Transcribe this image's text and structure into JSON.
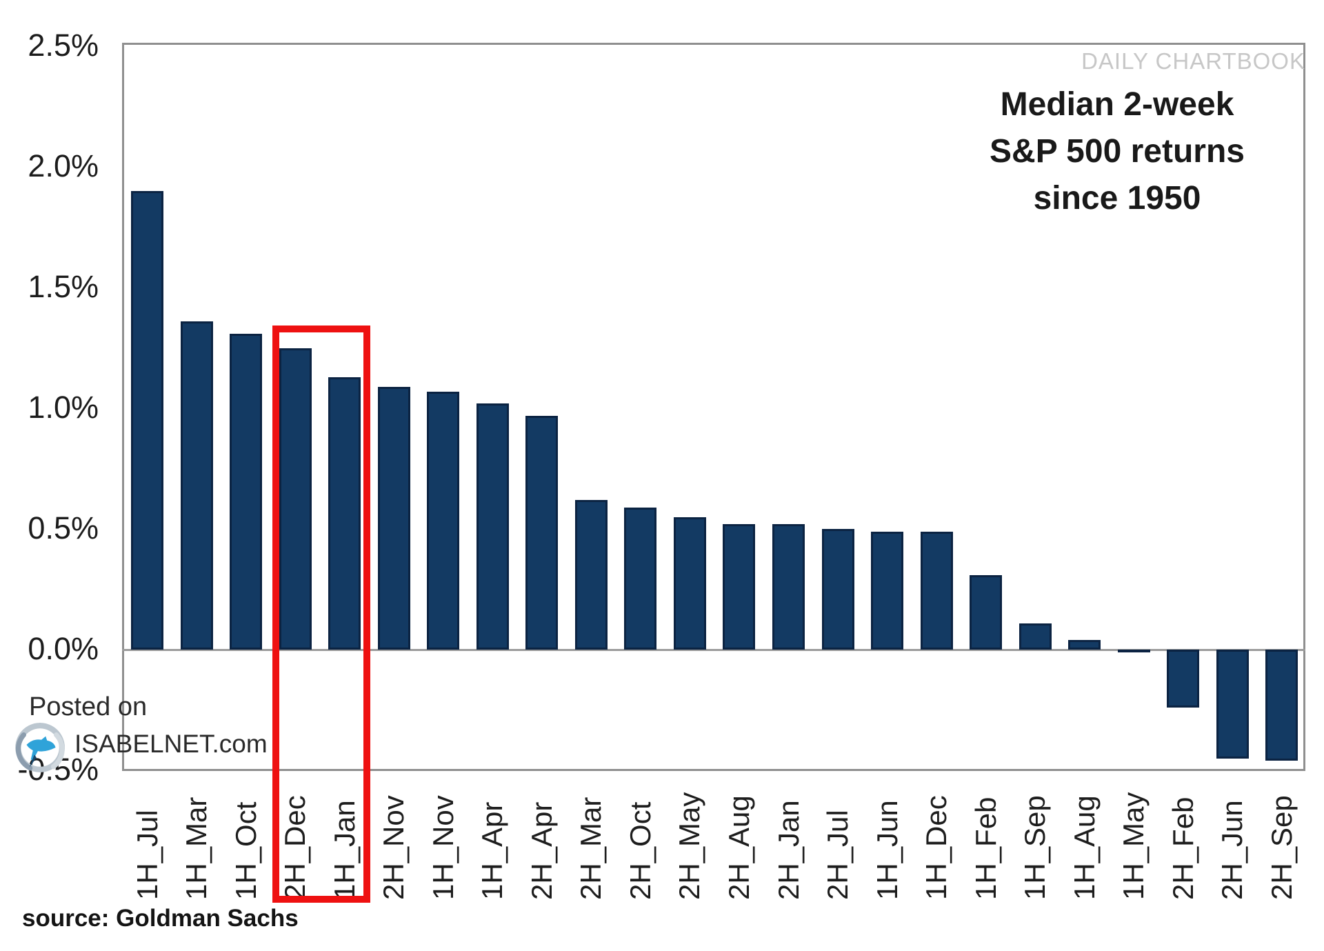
{
  "watermark": "DAILY CHARTBOOK",
  "title": {
    "line1": "Median 2-week",
    "line2": "S&P 500 returns",
    "line3": "since 1950"
  },
  "footer": {
    "posted_prefix": "Posted on",
    "site": "ISABELNET.com",
    "source": "source: Goldman Sachs"
  },
  "chart_data": {
    "type": "bar",
    "title": "Median 2-week S&P 500 returns since 1950",
    "categories": [
      "1H_Jul",
      "1H_Mar",
      "1H_Oct",
      "2H_Dec",
      "1H_Jan",
      "2H_Nov",
      "1H_Nov",
      "1H_Apr",
      "2H_Apr",
      "2H_Mar",
      "2H_Oct",
      "2H_May",
      "2H_Aug",
      "2H_Jan",
      "2H_Jul",
      "1H_Jun",
      "1H_Dec",
      "1H_Feb",
      "1H_Sep",
      "1H_Aug",
      "1H_May",
      "2H_Feb",
      "2H_Jun",
      "2H_Sep"
    ],
    "values": [
      1.9,
      1.36,
      1.31,
      1.25,
      1.13,
      1.09,
      1.07,
      1.02,
      0.97,
      0.62,
      0.59,
      0.55,
      0.52,
      0.52,
      0.5,
      0.49,
      0.49,
      0.31,
      0.11,
      0.04,
      -0.01,
      -0.24,
      -0.45,
      -0.46
    ],
    "value_unit": "%",
    "y_ticks": [
      {
        "label": "2.5%",
        "value": 2.5
      },
      {
        "label": "2.0%",
        "value": 2.0
      },
      {
        "label": "1.5%",
        "value": 1.5
      },
      {
        "label": "1.0%",
        "value": 1.0
      },
      {
        "label": "0.5%",
        "value": 0.5
      },
      {
        "label": "0.0%",
        "value": 0.0
      },
      {
        "label": "-0.5%",
        "value": -0.5
      }
    ],
    "ylim": [
      -0.5,
      2.5
    ],
    "grid": "none",
    "legend": "none",
    "bar_color": "#133a63",
    "bar_border_color": "#0b2342",
    "axis_color": "#8f8f8f",
    "highlight": {
      "categories": [
        "2H_Dec",
        "1H_Jan"
      ],
      "color": "#ee1111"
    }
  }
}
